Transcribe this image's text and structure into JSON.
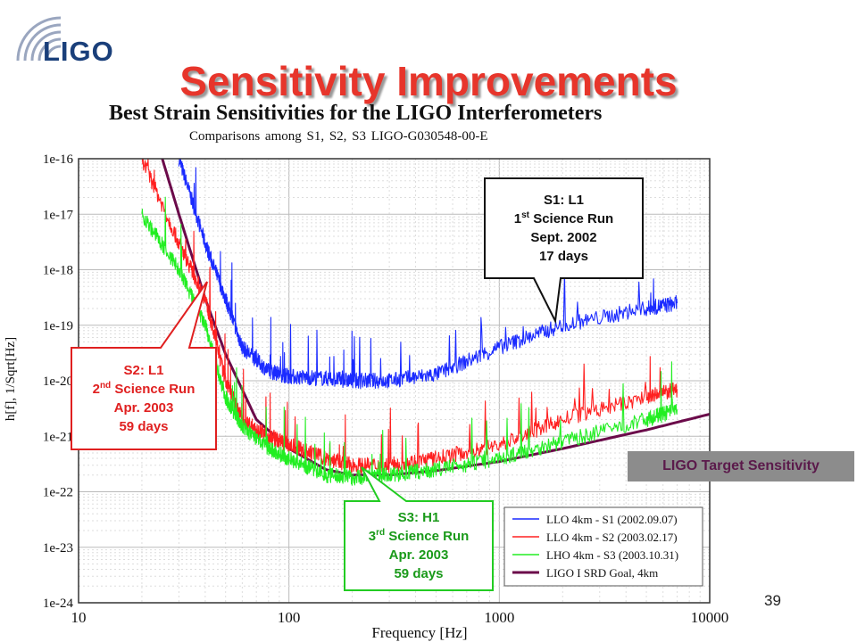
{
  "logo": {
    "text": "LIGO"
  },
  "slide": {
    "title": "Sensitivity Improvements",
    "page_number": "39"
  },
  "colors": {
    "s1": "#1a2aff",
    "s2": "#ff2020",
    "s3": "#22ee22",
    "goal": "#6b0a4a",
    "title": "#e7352b"
  },
  "chart_data": {
    "type": "line",
    "title": "Best Strain Sensitivities for the LIGO Interferometers",
    "subtitle": "Comparisons among S1, S2, S3      LIGO-G030548-00-E",
    "xlabel": "Frequency [Hz]",
    "ylabel": "h[f], 1/Sqrt[Hz]",
    "xscale": "log",
    "yscale": "log",
    "xlim": [
      10,
      10000
    ],
    "ylim": [
      1e-24,
      1e-16
    ],
    "x_ticks": [
      "10",
      "100",
      "1000",
      "10000"
    ],
    "y_ticks": [
      "1e-24",
      "1e-23",
      "1e-22",
      "1e-21",
      "1e-20",
      "1e-19",
      "1e-18",
      "1e-17",
      "1e-16"
    ],
    "grid": true,
    "legend_position": "bottom-right",
    "series": [
      {
        "name": "LLO 4km - S1 (2002.09.07)",
        "color": "#1a2aff",
        "x": [
          30,
          40,
          50,
          60,
          80,
          100,
          150,
          200,
          300,
          500,
          1000,
          2000,
          5000,
          7000
        ],
        "y": [
          1e-16,
          3e-18,
          3e-19,
          4e-20,
          1.5e-20,
          1.2e-20,
          1.1e-20,
          1e-20,
          1e-20,
          1.3e-20,
          4e-20,
          1e-19,
          2e-19,
          2.5e-19
        ]
      },
      {
        "name": "LLO 4km - S2 (2003.02.17)",
        "color": "#ff2020",
        "x": [
          20,
          30,
          40,
          50,
          60,
          80,
          100,
          150,
          200,
          300,
          500,
          1000,
          2000,
          5000,
          7000
        ],
        "y": [
          1e-16,
          3e-18,
          3e-19,
          1e-20,
          2e-21,
          1e-21,
          7e-22,
          4e-22,
          3e-22,
          3e-22,
          4e-22,
          7e-22,
          2e-21,
          5e-21,
          7e-21
        ]
      },
      {
        "name": "LHO 4km - S3 (2003.10.31)",
        "color": "#22ee22",
        "x": [
          20,
          30,
          40,
          50,
          60,
          80,
          100,
          150,
          200,
          300,
          500,
          1000,
          2000,
          5000,
          7000
        ],
        "y": [
          1e-17,
          1e-18,
          1e-19,
          5e-21,
          1.5e-21,
          6e-22,
          4e-22,
          2e-22,
          1.8e-22,
          2e-22,
          2.5e-22,
          4e-22,
          8e-22,
          2e-21,
          3e-21
        ]
      },
      {
        "name": "LIGO I SRD Goal, 4km",
        "color": "#6b0a4a",
        "x": [
          25,
          30,
          40,
          50,
          70,
          100,
          150,
          200,
          300,
          500,
          1000,
          2000,
          5000,
          10000
        ],
        "y": [
          1e-16,
          1e-17,
          3e-19,
          3e-20,
          2e-21,
          6e-22,
          2.5e-22,
          2e-22,
          2e-22,
          2.4e-22,
          3.5e-22,
          6e-22,
          1.3e-21,
          2.5e-21
        ]
      }
    ]
  },
  "callouts": {
    "s1": {
      "line1": "S1: L1",
      "line2_num": "1",
      "line2_sup": "st",
      "line2_rest": "Science Run",
      "line3": "Sept. 2002",
      "line4": "17 days"
    },
    "s2": {
      "line1": "S2: L1",
      "line2_num": "2",
      "line2_sup": "nd",
      "line2_rest": "Science Run",
      "line3": "Apr. 2003",
      "line4": "59 days"
    },
    "s3": {
      "line1": "S3: H1",
      "line2_num": "3",
      "line2_sup": "rd",
      "line2_rest": "Science Run",
      "line3": "Apr. 2003",
      "line4": "59 days"
    }
  },
  "target_label": "LIGO Target Sensitivity"
}
